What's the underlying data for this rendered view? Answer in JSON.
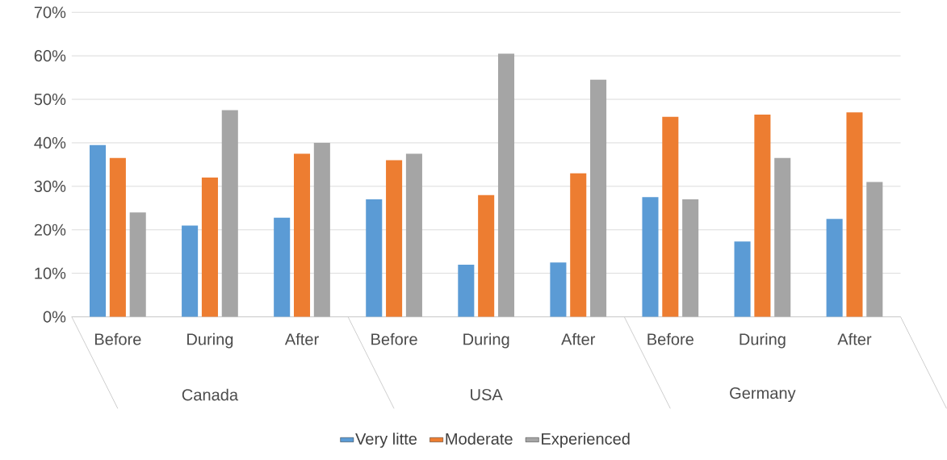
{
  "chart_data": {
    "type": "bar",
    "categories": [
      "Before",
      "During",
      "After",
      "Before",
      "During",
      "After",
      "Before",
      "During",
      "After"
    ],
    "series": [
      {
        "name": "Very litte",
        "color": "#5b9bd5",
        "values": [
          39.5,
          21,
          22.8,
          27,
          12,
          12.5,
          27.5,
          17.3,
          22.5
        ]
      },
      {
        "name": "Moderate",
        "color": "#ed7d31",
        "values": [
          36.5,
          32,
          37.5,
          36,
          28,
          33,
          46,
          46.5,
          47
        ]
      },
      {
        "name": "Experienced",
        "color": "#a5a5a5",
        "values": [
          24,
          47.5,
          40,
          37.5,
          60.5,
          54.5,
          27,
          36.5,
          31
        ]
      }
    ],
    "annotations": [
      "Canada",
      "USA",
      "Germany"
    ],
    "ylim": [
      0,
      70
    ],
    "yticks": [
      {
        "value": 0,
        "label": "0%"
      },
      {
        "value": 10,
        "label": "10%"
      },
      {
        "value": 20,
        "label": "20%"
      },
      {
        "value": 30,
        "label": "30%"
      },
      {
        "value": 40,
        "label": "40%"
      },
      {
        "value": 50,
        "label": "50%"
      },
      {
        "value": 60,
        "label": "60%"
      },
      {
        "value": 70,
        "label": "70%"
      }
    ],
    "grid": "y",
    "legend": "bottom"
  }
}
